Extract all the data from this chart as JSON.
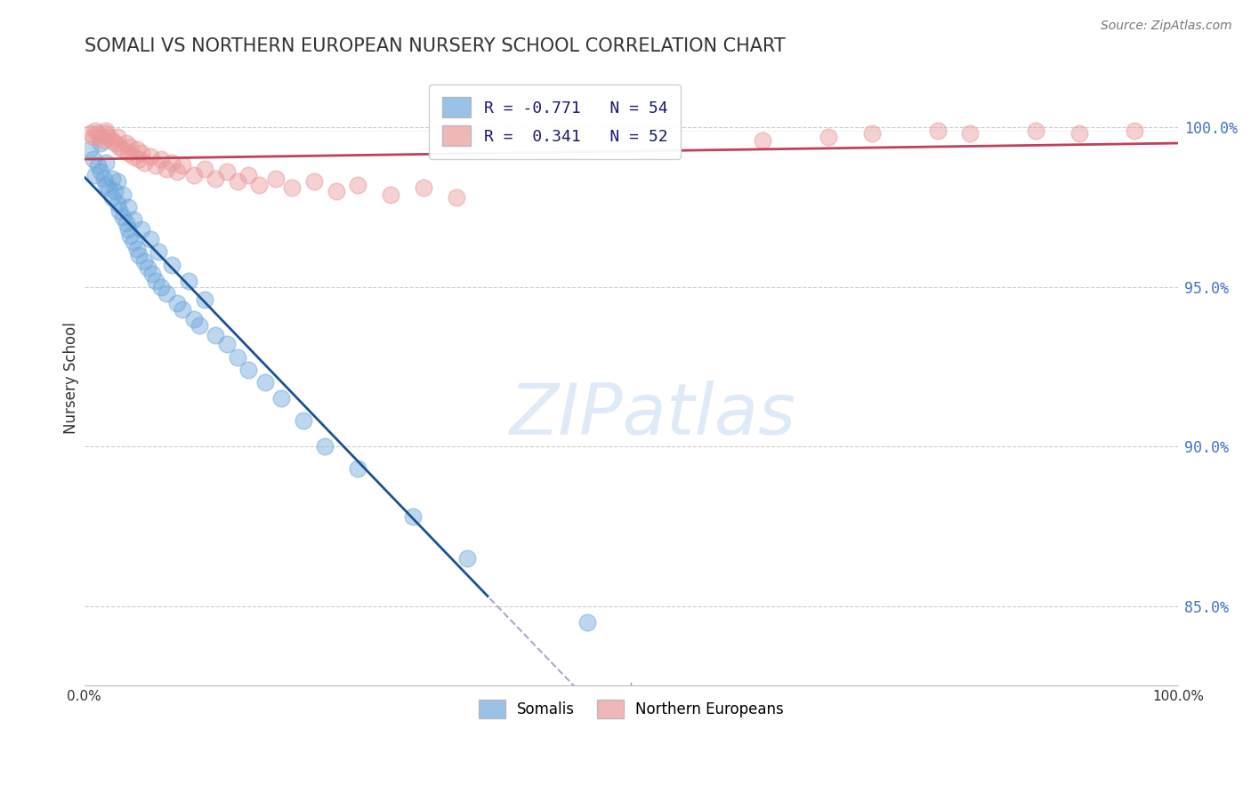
{
  "title": "SOMALI VS NORTHERN EUROPEAN NURSERY SCHOOL CORRELATION CHART",
  "source": "Source: ZipAtlas.com",
  "ylabel": "Nursery School",
  "xlim": [
    0.0,
    1.0
  ],
  "ylim": [
    0.825,
    1.018
  ],
  "somali_color": "#6fa8dc",
  "somali_edge": "#6fa8dc",
  "northern_color": "#ea9999",
  "northern_edge": "#ea9999",
  "somali_line_color": "#1a5296",
  "northern_line_color": "#c0405a",
  "somali_R": -0.771,
  "somali_N": 54,
  "northern_R": 0.341,
  "northern_N": 52,
  "legend_label_somali": "Somalis",
  "legend_label_northern": "Northern Europeans",
  "watermark": "ZIPatlas",
  "ytick_vals": [
    0.85,
    0.9,
    0.95,
    1.0
  ],
  "ytick_labels": [
    "85.0%",
    "90.0%",
    "95.0%",
    "100.0%"
  ],
  "somali_x": [
    0.005,
    0.008,
    0.01,
    0.012,
    0.015,
    0.015,
    0.018,
    0.02,
    0.02,
    0.022,
    0.025,
    0.025,
    0.028,
    0.03,
    0.03,
    0.032,
    0.035,
    0.035,
    0.038,
    0.04,
    0.04,
    0.042,
    0.045,
    0.045,
    0.048,
    0.05,
    0.052,
    0.055,
    0.058,
    0.06,
    0.062,
    0.065,
    0.068,
    0.07,
    0.075,
    0.08,
    0.085,
    0.09,
    0.095,
    0.1,
    0.105,
    0.11,
    0.12,
    0.13,
    0.14,
    0.15,
    0.165,
    0.18,
    0.2,
    0.22,
    0.25,
    0.3,
    0.35,
    0.46
  ],
  "somali_y": [
    0.993,
    0.99,
    0.985,
    0.988,
    0.986,
    0.995,
    0.984,
    0.982,
    0.989,
    0.981,
    0.978,
    0.984,
    0.98,
    0.976,
    0.983,
    0.974,
    0.972,
    0.979,
    0.97,
    0.968,
    0.975,
    0.966,
    0.964,
    0.971,
    0.962,
    0.96,
    0.968,
    0.958,
    0.956,
    0.965,
    0.954,
    0.952,
    0.961,
    0.95,
    0.948,
    0.957,
    0.945,
    0.943,
    0.952,
    0.94,
    0.938,
    0.946,
    0.935,
    0.932,
    0.928,
    0.924,
    0.92,
    0.915,
    0.908,
    0.9,
    0.893,
    0.878,
    0.865,
    0.845
  ],
  "northern_x": [
    0.005,
    0.008,
    0.01,
    0.012,
    0.015,
    0.018,
    0.02,
    0.02,
    0.022,
    0.025,
    0.028,
    0.03,
    0.032,
    0.035,
    0.038,
    0.04,
    0.042,
    0.045,
    0.048,
    0.05,
    0.052,
    0.055,
    0.06,
    0.065,
    0.07,
    0.075,
    0.08,
    0.085,
    0.09,
    0.1,
    0.11,
    0.12,
    0.13,
    0.14,
    0.15,
    0.16,
    0.175,
    0.19,
    0.21,
    0.23,
    0.25,
    0.28,
    0.31,
    0.34,
    0.62,
    0.68,
    0.72,
    0.78,
    0.81,
    0.87,
    0.91,
    0.96
  ],
  "northern_y": [
    0.998,
    0.997,
    0.999,
    0.998,
    0.997,
    0.996,
    0.998,
    0.999,
    0.997,
    0.996,
    0.995,
    0.997,
    0.994,
    0.993,
    0.995,
    0.992,
    0.994,
    0.991,
    0.993,
    0.99,
    0.992,
    0.989,
    0.991,
    0.988,
    0.99,
    0.987,
    0.989,
    0.986,
    0.988,
    0.985,
    0.987,
    0.984,
    0.986,
    0.983,
    0.985,
    0.982,
    0.984,
    0.981,
    0.983,
    0.98,
    0.982,
    0.979,
    0.981,
    0.978,
    0.996,
    0.997,
    0.998,
    0.999,
    0.998,
    0.999,
    0.998,
    0.999
  ]
}
